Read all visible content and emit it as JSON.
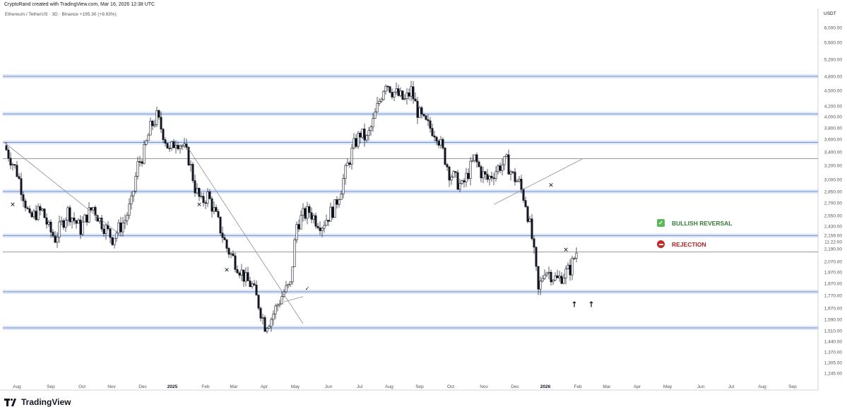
{
  "header": {
    "credit": "CryptoRand created with TradingView.com, Mar 16, 2026 12:38 UTC",
    "symbol": "Ethereum / TetherUS · 3D · Binance",
    "change": "+195.30 (+9.93%)"
  },
  "footer": {
    "brand": "TradingView"
  },
  "annotations": {
    "bullish": "BULLISH REVERSAL",
    "rejection": "REJECTION"
  },
  "colors": {
    "bull_candle": "#ffffff",
    "bear_candle": "#131722",
    "zone": "#b9cdf0",
    "bullish_text": "#2e7d32",
    "rejection_text": "#b71c1c"
  },
  "chart_data": {
    "type": "candlestick",
    "currency": "USDT",
    "y_ticks": [
      "6,000.00",
      "5,600.00",
      "5,200.00",
      "4,800.00",
      "4,500.00",
      "4,200.00",
      "4,000.00",
      "3,800.00",
      "3,600.00",
      "3,400.00",
      "3,200.00",
      "3,000.00",
      "2,850.00",
      "2,700.00",
      "2,550.00",
      "2,430.00",
      "2,190.00",
      "2,070.00",
      "1,970.00",
      "1,870.00",
      "1,770.00",
      "1,670.00",
      "1,590.00",
      "1,510.00",
      "1,440.00",
      "1,370.00",
      "1,305.00",
      "1,245.00"
    ],
    "y_values": [
      6000,
      5600,
      5200,
      4800,
      4500,
      4200,
      4000,
      3800,
      3600,
      3400,
      3200,
      3000,
      2850,
      2700,
      2550,
      2430,
      2190,
      2070,
      1970,
      1870,
      1770,
      1670,
      1590,
      1510,
      1440,
      1370,
      1305,
      1245
    ],
    "current_price_label": "2,159.00",
    "countdown_label": "11:22:00",
    "x_ticks": [
      "Aug",
      "Sep",
      "Oct",
      "Nov",
      "Dec",
      "2025",
      "Feb",
      "Mar",
      "Apr",
      "May",
      "Jun",
      "Jul",
      "Aug",
      "Sep",
      "Oct",
      "Nov",
      "Dec",
      "2026",
      "Feb",
      "Mar",
      "Apr",
      "May",
      "Jun",
      "Jul",
      "Aug",
      "Sep"
    ],
    "zones": [
      4800,
      4050,
      3550,
      2850,
      2330,
      1800,
      1530
    ],
    "levels": [
      3300,
      2160
    ],
    "close_path": [
      [
        0,
        3500
      ],
      [
        3,
        3300
      ],
      [
        6,
        3100
      ],
      [
        9,
        2800
      ],
      [
        12,
        2500
      ],
      [
        15,
        2580
      ],
      [
        18,
        2600
      ],
      [
        21,
        2400
      ],
      [
        24,
        2300
      ],
      [
        27,
        2450
      ],
      [
        30,
        2600
      ],
      [
        33,
        2500
      ],
      [
        36,
        2400
      ],
      [
        39,
        2550
      ],
      [
        42,
        2650
      ],
      [
        45,
        2500
      ],
      [
        48,
        2400
      ],
      [
        51,
        2300
      ],
      [
        54,
        2400
      ],
      [
        57,
        2500
      ],
      [
        60,
        2700
      ],
      [
        63,
        3200
      ],
      [
        66,
        3400
      ],
      [
        69,
        3800
      ],
      [
        72,
        4000
      ],
      [
        75,
        3700
      ],
      [
        78,
        3400
      ],
      [
        81,
        3600
      ],
      [
        84,
        3500
      ],
      [
        87,
        3300
      ],
      [
        90,
        2900
      ],
      [
        93,
        2700
      ],
      [
        96,
        2800
      ],
      [
        99,
        2600
      ],
      [
        102,
        2400
      ],
      [
        105,
        2200
      ],
      [
        108,
        2100
      ],
      [
        111,
        2000
      ],
      [
        114,
        1900
      ],
      [
        117,
        1850
      ],
      [
        120,
        1700
      ],
      [
        123,
        1550
      ],
      [
        126,
        1600
      ],
      [
        129,
        1700
      ],
      [
        132,
        1800
      ],
      [
        135,
        1850
      ],
      [
        138,
        2450
      ],
      [
        141,
        2550
      ],
      [
        144,
        2600
      ],
      [
        147,
        2500
      ],
      [
        150,
        2450
      ],
      [
        153,
        2550
      ],
      [
        156,
        2650
      ],
      [
        159,
        2900
      ],
      [
        162,
        3200
      ],
      [
        165,
        3500
      ],
      [
        168,
        3700
      ],
      [
        171,
        3600
      ],
      [
        174,
        3900
      ],
      [
        177,
        4300
      ],
      [
        180,
        4700
      ],
      [
        183,
        4500
      ],
      [
        186,
        4400
      ],
      [
        189,
        4300
      ],
      [
        192,
        4500
      ],
      [
        195,
        4100
      ],
      [
        198,
        3900
      ],
      [
        201,
        3800
      ],
      [
        204,
        3700
      ],
      [
        207,
        3400
      ],
      [
        210,
        3100
      ],
      [
        213,
        3000
      ],
      [
        216,
        2900
      ],
      [
        219,
        3100
      ],
      [
        222,
        3300
      ],
      [
        225,
        3100
      ],
      [
        228,
        3000
      ],
      [
        231,
        3100
      ],
      [
        234,
        3200
      ],
      [
        237,
        3250
      ],
      [
        240,
        3050
      ],
      [
        243,
        2950
      ],
      [
        246,
        2700
      ],
      [
        249,
        2300
      ],
      [
        252,
        1800
      ],
      [
        255,
        2000
      ],
      [
        258,
        1950
      ],
      [
        261,
        1900
      ],
      [
        264,
        1950
      ],
      [
        267,
        2000
      ],
      [
        270,
        2160
      ]
    ],
    "trend_lines": [
      {
        "from": [
          0,
          3550
        ],
        "to": [
          54,
          2350
        ]
      },
      {
        "from": [
          87,
          3450
        ],
        "to": [
          141,
          1560
        ]
      },
      {
        "from": [
          132,
          1720
        ],
        "to": [
          141,
          1760
        ]
      },
      {
        "from": [
          231,
          2680
        ],
        "to": [
          273,
          3300
        ]
      }
    ],
    "markers": [
      {
        "type": "x",
        "t": 4,
        "price": 2680
      },
      {
        "type": "x",
        "t": 92,
        "price": 2680
      },
      {
        "type": "x",
        "t": 105,
        "price": 1990
      },
      {
        "type": "check",
        "t": 143,
        "price": 1830
      },
      {
        "type": "x",
        "t": 258,
        "price": 2930
      },
      {
        "type": "x",
        "t": 265,
        "price": 2180
      },
      {
        "type": "arrow-up",
        "t": 269,
        "price": 1700
      },
      {
        "type": "arrow-up",
        "t": 277,
        "price": 1700
      }
    ]
  }
}
